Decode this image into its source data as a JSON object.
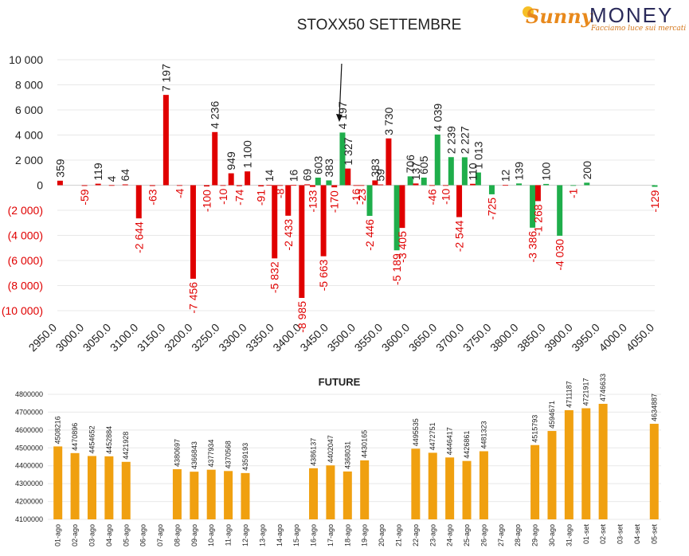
{
  "logo": {
    "name_part1": "Sunny",
    "name_part2": "MONEY",
    "tagline": "Facciamo luce sui mercati"
  },
  "colors": {
    "red": "#e00000",
    "green": "#1fae4b",
    "orange": "#f0a010",
    "neg_label": "#e00000"
  },
  "chart_data": [
    {
      "type": "bar",
      "title": "STOXX50 SETTEMBRE",
      "xlabel": "",
      "ylabel": "",
      "ylim": [
        -10000,
        10000
      ],
      "yticks": [
        10000,
        8000,
        6000,
        4000,
        2000,
        0,
        -2000,
        -4000,
        -6000,
        -8000,
        -10000
      ],
      "ytick_labels": [
        "10 000",
        "8 000",
        "6 000",
        "4 000",
        "2 000",
        "0",
        "(2 000)",
        "(4 000)",
        "(6 000)",
        "(8 000)",
        "(10 000)"
      ],
      "xlim": [
        2950,
        4050
      ],
      "xticks": [
        2950,
        3000,
        3050,
        3100,
        3150,
        3200,
        3250,
        3300,
        3350,
        3400,
        3450,
        3500,
        3550,
        3600,
        3650,
        3700,
        3750,
        3800,
        3850,
        3900,
        3950,
        4000,
        4050
      ],
      "xtick_labels": [
        "2950.0",
        "3000.0",
        "3050.0",
        "3100.0",
        "3150.0",
        "3200.0",
        "3250.0",
        "3300.0",
        "3350.0",
        "3400.0",
        "3450.0",
        "3500.0",
        "3550.0",
        "3600.0",
        "3650.0",
        "3700.0",
        "3750.0",
        "3800.0",
        "3850.0",
        "3900.0",
        "3950.0",
        "4000.0",
        "4050.0"
      ],
      "grid": true,
      "annotation": "arrow pointing down at 3475",
      "arrow_strike": 3475,
      "bars": [
        {
          "x": 2955,
          "value": 359,
          "color": "red"
        },
        {
          "x": 3000,
          "value": -59,
          "color": "red"
        },
        {
          "x": 3025,
          "value": 119,
          "color": "red"
        },
        {
          "x": 3050,
          "value": 4,
          "color": "red"
        },
        {
          "x": 3075,
          "value": 64,
          "color": "red"
        },
        {
          "x": 3100,
          "value": -2644,
          "color": "red"
        },
        {
          "x": 3125,
          "value": -63,
          "color": "red"
        },
        {
          "x": 3150,
          "value": 7197,
          "color": "red"
        },
        {
          "x": 3175,
          "value": -4,
          "color": "red"
        },
        {
          "x": 3200,
          "value": -7456,
          "color": "red"
        },
        {
          "x": 3225,
          "value": -100,
          "color": "red"
        },
        {
          "x": 3240,
          "value": 4236,
          "color": "red"
        },
        {
          "x": 3255,
          "value": -10,
          "color": "red"
        },
        {
          "x": 3270,
          "value": 949,
          "color": "red"
        },
        {
          "x": 3285,
          "value": -74,
          "color": "red"
        },
        {
          "x": 3300,
          "value": 1100,
          "color": "red"
        },
        {
          "x": 3325,
          "value": -91,
          "color": "red"
        },
        {
          "x": 3340,
          "value": 14,
          "color": "red"
        },
        {
          "x": 3350,
          "value": -5832,
          "color": "red"
        },
        {
          "x": 3360,
          "value": -8,
          "color": "red"
        },
        {
          "x": 3375,
          "value": -2433,
          "color": "red"
        },
        {
          "x": 3385,
          "value": 16,
          "color": "red"
        },
        {
          "x": 3400,
          "value": -8985,
          "color": "red"
        },
        {
          "x": 3410,
          "value": 69,
          "color": "red"
        },
        {
          "x": 3420,
          "value": -133,
          "color": "red"
        },
        {
          "x": 3430,
          "value": 603,
          "color": "green"
        },
        {
          "x": 3440,
          "value": -5663,
          "color": "red"
        },
        {
          "x": 3450,
          "value": 383,
          "color": "green"
        },
        {
          "x": 3460,
          "value": -170,
          "color": "red"
        },
        {
          "x": 3475,
          "value": 4197,
          "color": "green"
        },
        {
          "x": 3485,
          "value": 1327,
          "color": "red"
        },
        {
          "x": 3500,
          "value": -16,
          "color": "red"
        },
        {
          "x": 3510,
          "value": -23,
          "color": "red"
        },
        {
          "x": 3525,
          "value": -2446,
          "color": "green"
        },
        {
          "x": 3535,
          "value": 383,
          "color": "red"
        },
        {
          "x": 3545,
          "value": 59,
          "color": "red"
        },
        {
          "x": 3560,
          "value": 3730,
          "color": "red"
        },
        {
          "x": 3575,
          "value": -5189,
          "color": "green"
        },
        {
          "x": 3585,
          "value": -3405,
          "color": "red"
        },
        {
          "x": 3600,
          "value": 706,
          "color": "green"
        },
        {
          "x": 3610,
          "value": 137,
          "color": "red"
        },
        {
          "x": 3625,
          "value": 605,
          "color": "green"
        },
        {
          "x": 3640,
          "value": -46,
          "color": "red"
        },
        {
          "x": 3650,
          "value": 4039,
          "color": "green"
        },
        {
          "x": 3665,
          "value": -10,
          "color": "red"
        },
        {
          "x": 3675,
          "value": 2239,
          "color": "green"
        },
        {
          "x": 3690,
          "value": -2544,
          "color": "red"
        },
        {
          "x": 3700,
          "value": 2227,
          "color": "green"
        },
        {
          "x": 3715,
          "value": 110,
          "color": "red"
        },
        {
          "x": 3725,
          "value": 1013,
          "color": "green"
        },
        {
          "x": 3750,
          "value": -725,
          "color": "green"
        },
        {
          "x": 3775,
          "value": 12,
          "color": "red"
        },
        {
          "x": 3800,
          "value": 139,
          "color": "green"
        },
        {
          "x": 3825,
          "value": -3386,
          "color": "green"
        },
        {
          "x": 3835,
          "value": -1268,
          "color": "red"
        },
        {
          "x": 3850,
          "value": 100,
          "color": "green"
        },
        {
          "x": 3875,
          "value": -4030,
          "color": "green"
        },
        {
          "x": 3900,
          "value": -1,
          "color": "green"
        },
        {
          "x": 3925,
          "value": 200,
          "color": "green"
        },
        {
          "x": 4050,
          "value": -129,
          "color": "green"
        }
      ],
      "data_labels": [
        "359",
        "-59",
        "119",
        "4",
        "64",
        "-2 644",
        "-63",
        "7 197",
        "-4",
        "-7 456",
        "-100",
        "4 236",
        "-10",
        "949",
        "-74",
        "1 100",
        "-91",
        "14",
        "-5 832",
        "-8",
        "-2 433",
        "16",
        "-8 985",
        "69",
        "-133",
        "603",
        "-5 663",
        "383",
        "-170",
        "4 197",
        "1 327",
        "-16",
        "-23",
        "-2 446",
        "383",
        "59",
        "3 730",
        "-5 189",
        "-3 405",
        "706",
        "137",
        "605",
        "-46",
        "4 039",
        "-10",
        "2 239",
        "-2 544",
        "2 227",
        "110",
        "1 013",
        "-725",
        "12",
        "139",
        "-3 386",
        "-1 268",
        "100",
        "-4 030",
        "-1",
        "200",
        "-129"
      ]
    },
    {
      "type": "bar",
      "title": "FUTURE",
      "xlabel": "",
      "ylabel": "",
      "ylim": [
        4100000,
        4800000
      ],
      "yticks": [
        4100000,
        4200000,
        4300000,
        4400000,
        4500000,
        4600000,
        4700000,
        4800000
      ],
      "ytick_labels": [
        "4100000",
        "4200000",
        "4300000",
        "4400000",
        "4500000",
        "4600000",
        "4700000",
        "4800000"
      ],
      "grid": true,
      "color": "orange",
      "categories": [
        "01-ago",
        "02-ago",
        "03-ago",
        "04-ago",
        "05-ago",
        "06-ago",
        "07-ago",
        "08-ago",
        "09-ago",
        "10-ago",
        "11-ago",
        "12-ago",
        "13-ago",
        "14-ago",
        "15-ago",
        "16-ago",
        "17-ago",
        "18-ago",
        "19-ago",
        "20-ago",
        "21-ago",
        "22-ago",
        "23-ago",
        "24-ago",
        "25-ago",
        "26-ago",
        "27-ago",
        "28-ago",
        "29-ago",
        "30-ago",
        "31-ago",
        "01-set",
        "02-set",
        "03-set",
        "04-set",
        "05-set"
      ],
      "values": [
        4508216,
        4470896,
        4454652,
        4452884,
        4421928,
        null,
        null,
        4380697,
        4366843,
        4377934,
        4370568,
        4359193,
        null,
        null,
        null,
        4386137,
        4402047,
        4368031,
        4430165,
        null,
        null,
        4495535,
        4472751,
        4446417,
        4426861,
        4481323,
        null,
        null,
        4515793,
        4594671,
        4711187,
        4721917,
        4746633,
        null,
        null,
        4634887
      ],
      "value_labels": [
        "4508216",
        "4470896",
        "4454652",
        "4452884",
        "4421928",
        "",
        "",
        "4380697",
        "4366843",
        "4377934",
        "4370568",
        "4359193",
        "",
        "",
        "",
        "4386137",
        "4402047",
        "4368031",
        "4430165",
        "",
        "",
        "4495535",
        "4472751",
        "4446417",
        "4426861",
        "4481323",
        "",
        "",
        "4515793",
        "4594671",
        "4711187",
        "4721917",
        "4746633",
        "",
        "",
        "4634887"
      ]
    }
  ]
}
